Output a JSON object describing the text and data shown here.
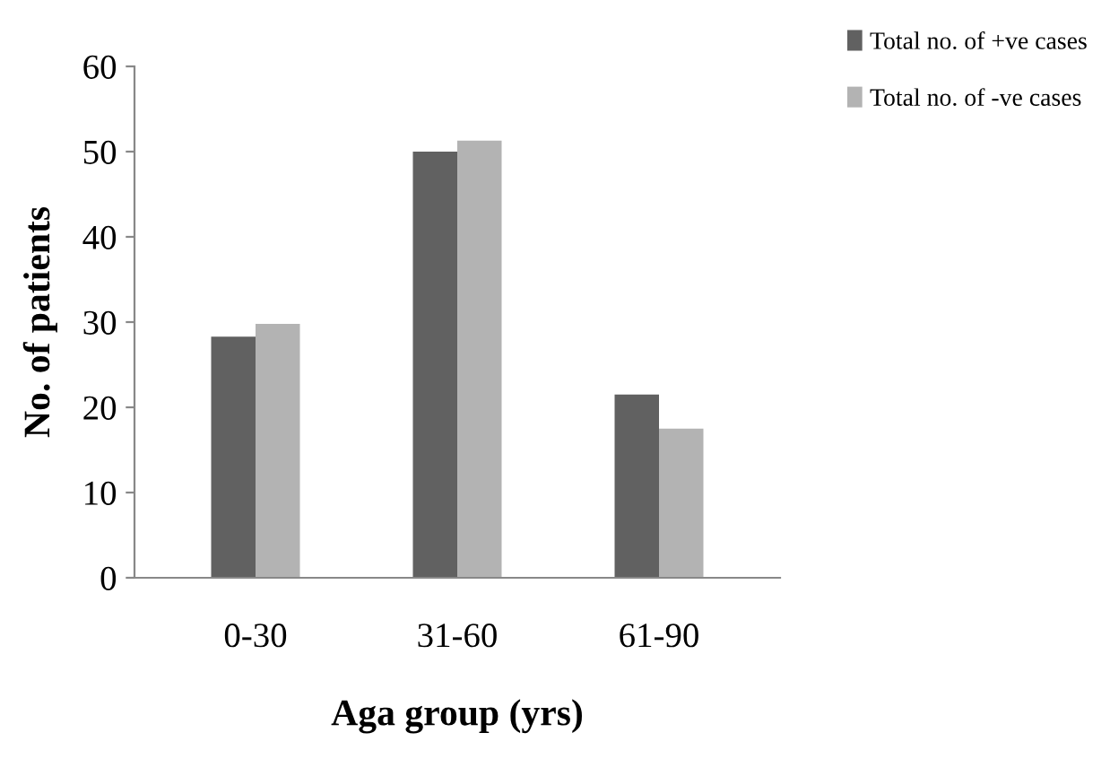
{
  "chart_data": {
    "type": "bar",
    "xlabel": "Aga group (yrs)",
    "ylabel": "No. of patients",
    "categories": [
      "0-30",
      "31-60",
      "61-90"
    ],
    "series": [
      {
        "name": "Total no. of +ve cases",
        "color": "#616161",
        "values": [
          28.3,
          50,
          21.5
        ]
      },
      {
        "name": "Total no. of -ve cases",
        "color": "#b3b3b3",
        "values": [
          29.8,
          51.3,
          17.5
        ]
      }
    ],
    "ylim": [
      0,
      60
    ],
    "yticks": [
      0,
      10,
      20,
      30,
      40,
      50,
      60
    ],
    "grid": false,
    "legend": "top right"
  }
}
